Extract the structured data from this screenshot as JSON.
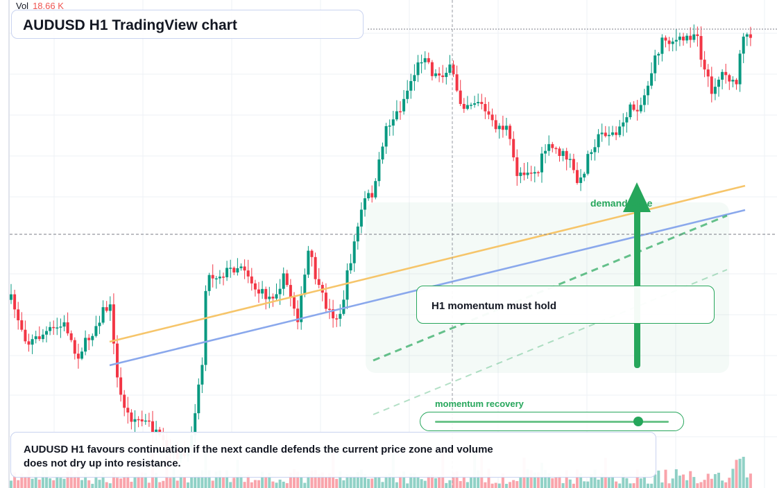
{
  "title": "AUDUSD H1 TradingView chart",
  "volume": {
    "label": "Vol",
    "value": "18.66 K"
  },
  "callout": {
    "text": "H1 momentum must hold"
  },
  "zone": {
    "label": "demand zone"
  },
  "momentum": {
    "label": "momentum recovery",
    "level": 0.87
  },
  "summary": {
    "line1": "AUDUSD H1 favours continuation if the next candle defends the current price zone and volume",
    "line2": "does not dry up into resistance."
  },
  "colors": {
    "bull": "#089981",
    "bear": "#f23645",
    "accent_green": "#26a65b",
    "trend_orange": "#f6c56a",
    "trend_blue": "#8aa8ec",
    "grid": "#eef1f6"
  }
}
